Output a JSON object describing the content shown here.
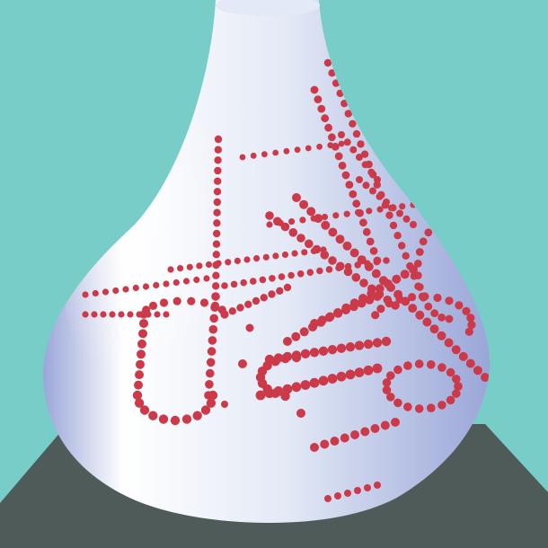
{
  "scene": {
    "background_color": "#78cdc9",
    "floor_color": "#4e5b58",
    "vase_color": "#e3e9f6",
    "vase_highlight_color": "#ffffff",
    "vase_shadow_color": "#9aa6d8",
    "dot_color": "#cc3a4a"
  }
}
